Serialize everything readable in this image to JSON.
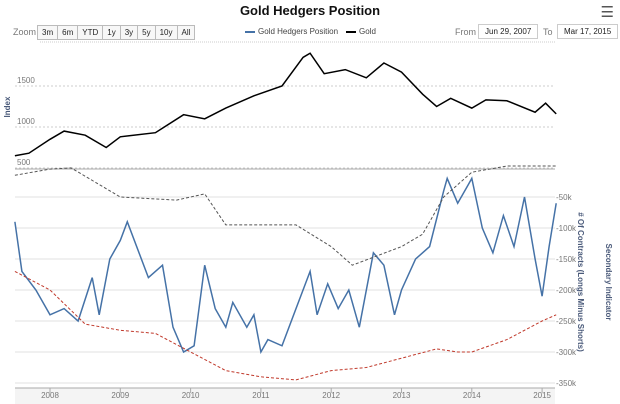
{
  "title": "Gold Hedgers Position",
  "menu_icon": "hamburger-menu-icon",
  "zoom": {
    "label": "Zoom",
    "buttons": [
      "3m",
      "6m",
      "YTD",
      "1y",
      "3y",
      "5y",
      "10y",
      "All"
    ]
  },
  "range": {
    "from_label": "From",
    "from": "Jun 29, 2007",
    "to_label": "To",
    "to": "Mar 17, 2015"
  },
  "legend": [
    {
      "name": "Gold Hedgers Position",
      "color": "#4572a7"
    },
    {
      "name": "Gold",
      "color": "#000000"
    }
  ],
  "chart_data": [
    {
      "type": "line",
      "ylabel": "Index",
      "yticks": [
        500,
        1000,
        1500
      ],
      "ylim": [
        500,
        1950
      ],
      "series": [
        {
          "name": "Gold",
          "color": "#000000",
          "x": [
            2007.5,
            2007.7,
            2008.0,
            2008.2,
            2008.5,
            2008.8,
            2009.0,
            2009.5,
            2009.9,
            2010.2,
            2010.5,
            2010.9,
            2011.3,
            2011.6,
            2011.7,
            2011.9,
            2012.2,
            2012.5,
            2012.75,
            2013.0,
            2013.3,
            2013.5,
            2013.7,
            2014.0,
            2014.2,
            2014.5,
            2014.9,
            2015.05,
            2015.2
          ],
          "y": [
            650,
            680,
            850,
            950,
            900,
            750,
            880,
            930,
            1150,
            1100,
            1230,
            1380,
            1500,
            1850,
            1900,
            1650,
            1700,
            1600,
            1780,
            1670,
            1400,
            1250,
            1350,
            1230,
            1330,
            1320,
            1180,
            1290,
            1160
          ]
        }
      ]
    },
    {
      "type": "line",
      "ylabel": "# Of Contracts (Longs Minus Shorts)",
      "ylabel2": "Secondary Indicator",
      "yticks": [
        "-50k",
        "-100k",
        "-150k",
        "-200k",
        "-250k",
        "-300k",
        "-350k"
      ],
      "ylim": [
        -350000,
        0
      ],
      "xticks": [
        "2008",
        "2009",
        "2010",
        "2011",
        "2012",
        "2013",
        "2014",
        "2015"
      ],
      "series": [
        {
          "name": "Gold Hedgers Position",
          "color": "#4572a7",
          "x": [
            2007.5,
            2007.6,
            2007.8,
            2008.0,
            2008.2,
            2008.4,
            2008.6,
            2008.7,
            2008.85,
            2009.0,
            2009.1,
            2009.4,
            2009.6,
            2009.75,
            2009.9,
            2010.05,
            2010.2,
            2010.35,
            2010.5,
            2010.6,
            2010.8,
            2010.9,
            2011.0,
            2011.1,
            2011.3,
            2011.5,
            2011.7,
            2011.8,
            2011.95,
            2012.1,
            2012.25,
            2012.4,
            2012.6,
            2012.75,
            2012.9,
            2013.0,
            2013.2,
            2013.4,
            2013.6,
            2013.65,
            2013.8,
            2013.95,
            2014.0,
            2014.15,
            2014.3,
            2014.45,
            2014.6,
            2014.75,
            2014.9,
            2015.0,
            2015.1,
            2015.2
          ],
          "y": [
            -90000,
            -170000,
            -200000,
            -240000,
            -230000,
            -250000,
            -180000,
            -240000,
            -150000,
            -120000,
            -90000,
            -180000,
            -160000,
            -260000,
            -300000,
            -290000,
            -160000,
            -230000,
            -260000,
            -220000,
            -260000,
            -240000,
            -300000,
            -280000,
            -290000,
            -230000,
            -170000,
            -240000,
            -190000,
            -230000,
            -200000,
            -260000,
            -140000,
            -160000,
            -240000,
            -200000,
            -150000,
            -130000,
            -40000,
            -20000,
            -60000,
            -30000,
            -20000,
            -100000,
            -140000,
            -80000,
            -130000,
            -50000,
            -150000,
            -210000,
            -130000,
            -60000
          ]
        },
        {
          "color": "#555555",
          "dashed": true,
          "x": [
            2007.5,
            2008.0,
            2008.3,
            2009.0,
            2009.8,
            2010.2,
            2010.5,
            2011.5,
            2012.0,
            2012.3,
            2013.0,
            2013.3,
            2013.6,
            2014.0,
            2014.5,
            2015.2
          ],
          "y": [
            -15000,
            -5000,
            -3000,
            -50000,
            -55000,
            -45000,
            -95000,
            -95000,
            -130000,
            -160000,
            -130000,
            -110000,
            -50000,
            -10000,
            0,
            0
          ]
        },
        {
          "color": "#c0392b",
          "dashed": true,
          "x": [
            2007.5,
            2008.0,
            2008.5,
            2009.0,
            2009.5,
            2010.0,
            2010.5,
            2011.0,
            2011.5,
            2012.0,
            2012.5,
            2013.0,
            2013.5,
            2013.8,
            2014.0,
            2014.5,
            2015.0,
            2015.2
          ],
          "y": [
            -170000,
            -200000,
            -255000,
            -265000,
            -270000,
            -300000,
            -330000,
            -340000,
            -345000,
            -330000,
            -325000,
            -310000,
            -295000,
            -300000,
            -300000,
            -280000,
            -250000,
            -240000
          ]
        }
      ]
    }
  ]
}
